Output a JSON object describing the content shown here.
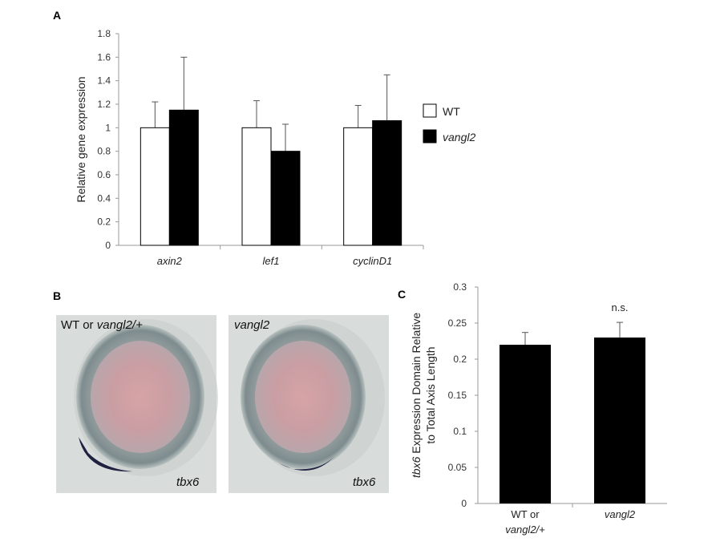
{
  "panels": {
    "a": "A",
    "b": "B",
    "c": "C"
  },
  "chart_data": [
    {
      "type": "bar",
      "panel": "A",
      "title": "",
      "xlabel": "",
      "ylabel": "Relative gene expression",
      "ylim": [
        0,
        1.8
      ],
      "yticks": [
        "0",
        "0.2",
        "0.4",
        "0.6",
        "0.8",
        "1",
        "1.2",
        "1.4",
        "1.6",
        "1.8"
      ],
      "categories": [
        "axin2",
        "lef1",
        "cyclinD1"
      ],
      "series": [
        {
          "name": "WT",
          "color": "#ffffff",
          "values": [
            1.0,
            1.0,
            1.0
          ],
          "errors": [
            0.22,
            0.23,
            0.19
          ]
        },
        {
          "name": "vangl2",
          "color": "#000000",
          "values": [
            1.15,
            0.8,
            1.06
          ],
          "errors": [
            0.45,
            0.23,
            0.39
          ]
        }
      ],
      "legend": "right",
      "grid": false
    },
    {
      "type": "bar",
      "panel": "C",
      "title": "",
      "xlabel": "",
      "ylabel_italic": "tbx6",
      "ylabel_line1": " Expression Domain Relative",
      "ylabel_line2": "to Total Axis Length",
      "ylim": [
        0,
        0.3
      ],
      "yticks": [
        "0",
        "0.05",
        "0.1",
        "0.15",
        "0.2",
        "0.25",
        "0.3"
      ],
      "categories": [
        {
          "line1": "WT or",
          "line2": "vangl2/+"
        },
        {
          "line1": "vangl2",
          "line2": ""
        }
      ],
      "values": [
        0.22,
        0.23
      ],
      "errors": [
        0.017,
        0.021
      ],
      "annotation": "n.s.",
      "annotation_index": 1,
      "grid": false
    }
  ],
  "panel_b": {
    "left": {
      "genotype_label_plain": "WT or ",
      "genotype_label_italic": "vangl2/+",
      "probe": "tbx6"
    },
    "right": {
      "genotype_label_plain": "",
      "genotype_label_italic": "vangl2",
      "probe": "tbx6"
    }
  }
}
